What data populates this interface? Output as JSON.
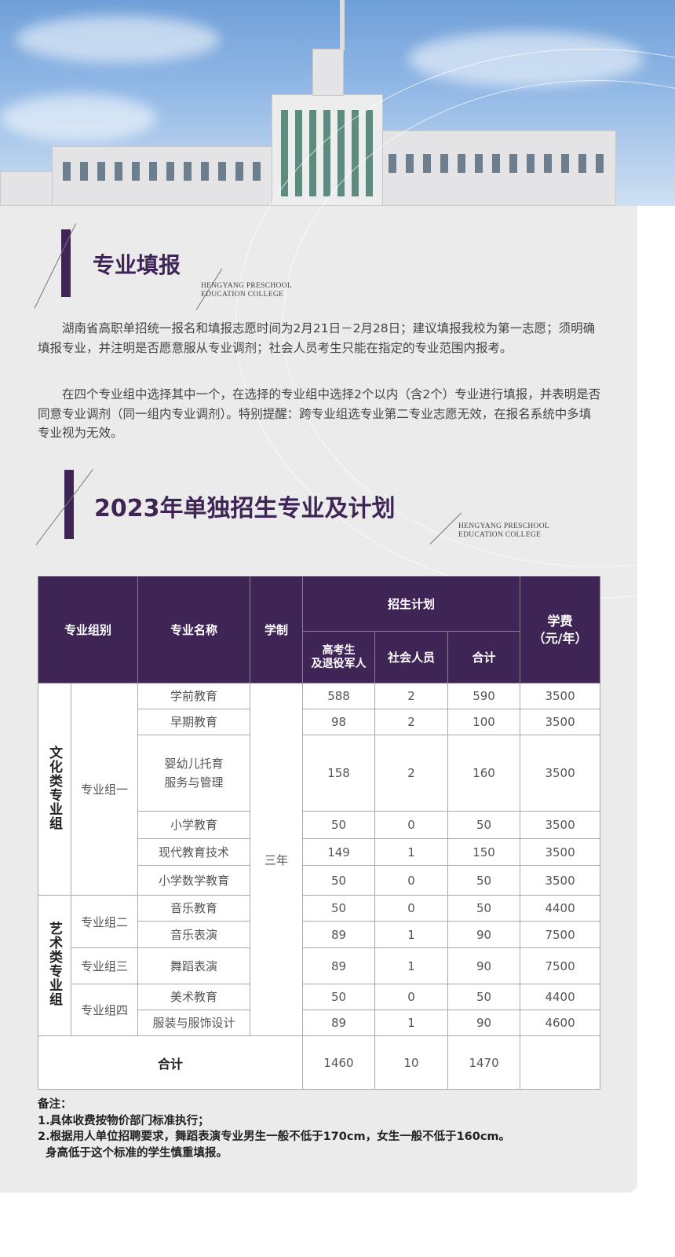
{
  "section1": {
    "title": "专业填报",
    "english_line1": "HENGYANG PRESCHOOL",
    "english_line2": "EDUCATION COLLEGE",
    "paragraphs": [
      "湖南省高职单招统一报名和填报志愿时间为2月21日－2月28日；建议填报我校为第一志愿；须明确填报专业，并注明是否愿意服从专业调剂；社会人员考生只能在指定的专业范围内报考。",
      "在四个专业组中选择其中一个，在选择的专业组中选择2个以内（含2个）专业进行填报，并表明是否同意专业调剂（同一组内专业调剂）。特别提醒：跨专业组选专业第二专业志愿无效，在报名系统中多填专业视为无效。"
    ]
  },
  "section2": {
    "title": "2023年单独招生专业及计划",
    "english_line1": "HENGYANG PRESCHOOL",
    "english_line2": "EDUCATION COLLEGE"
  },
  "table": {
    "headers": {
      "group": "专业组别",
      "name": "专业名称",
      "duration": "学制",
      "plan": "招生计划",
      "gaokao": "高考生\n及退役军人",
      "social": "社会人员",
      "total": "合计",
      "fee": "学费\n（元/年）"
    },
    "categories": [
      "文化类专业组",
      "艺术类专业组"
    ],
    "groups": [
      "专业组一",
      "专业组二",
      "专业组三",
      "专业组四"
    ],
    "duration": "三年",
    "rows": [
      {
        "name": "学前教育",
        "gaokao": "588",
        "social": "2",
        "total": "590",
        "fee": "3500"
      },
      {
        "name": "早期教育",
        "gaokao": "98",
        "social": "2",
        "total": "100",
        "fee": "3500"
      },
      {
        "name": "婴幼儿托育\n服务与管理",
        "gaokao": "158",
        "social": "2",
        "total": "160",
        "fee": "3500"
      },
      {
        "name": "小学教育",
        "gaokao": "50",
        "social": "0",
        "total": "50",
        "fee": "3500"
      },
      {
        "name": "现代教育技术",
        "gaokao": "149",
        "social": "1",
        "total": "150",
        "fee": "3500"
      },
      {
        "name": "小学数学教育",
        "gaokao": "50",
        "social": "0",
        "total": "50",
        "fee": "3500"
      },
      {
        "name": "音乐教育",
        "gaokao": "50",
        "social": "0",
        "total": "50",
        "fee": "4400"
      },
      {
        "name": "音乐表演",
        "gaokao": "89",
        "social": "1",
        "total": "90",
        "fee": "7500"
      },
      {
        "name": "舞蹈表演",
        "gaokao": "89",
        "social": "1",
        "total": "90",
        "fee": "7500"
      },
      {
        "name": "美术教育",
        "gaokao": "50",
        "social": "0",
        "total": "50",
        "fee": "4400"
      },
      {
        "name": "服装与服饰设计",
        "gaokao": "89",
        "social": "1",
        "total": "90",
        "fee": "4600"
      }
    ],
    "total_row": {
      "label": "合计",
      "gaokao": "1460",
      "social": "10",
      "total": "1470",
      "fee": ""
    }
  },
  "notes": {
    "title": "备注：",
    "items": [
      "1.具体收费按物价部门标准执行；",
      "2.根据用人单位招聘要求，舞蹈表演专业男生一般不低于170cm，女生一般不低于160cm。",
      "  身高低于这个标准的学生慎重填报。"
    ]
  },
  "colors": {
    "accent": "#3e2555",
    "panel": "#ebebeb"
  }
}
